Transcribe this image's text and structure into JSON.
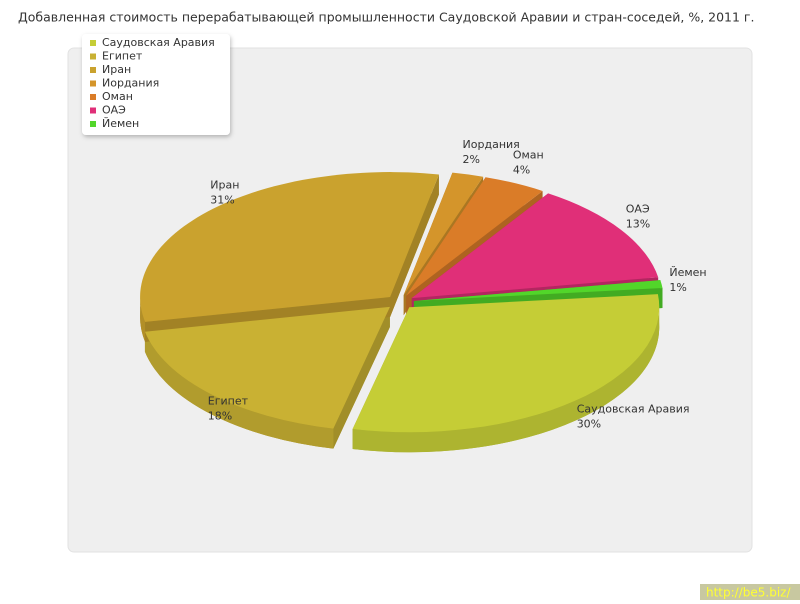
{
  "chart_data": {
    "type": "pie",
    "title": "Добавленная стоимость перерабатывающей промышленности Саудовской Аравии и стран-соседей, %, 2011 г.",
    "categories": [
      "Саудовская Аравия",
      "Египет",
      "Иран",
      "Иордания",
      "Оман",
      "ОАЭ",
      "Йемен"
    ],
    "values": [
      30,
      18,
      31,
      2,
      4,
      13,
      1
    ],
    "value_labels": [
      "30%",
      "18%",
      "31%",
      "2%",
      "4%",
      "13%",
      "1%"
    ],
    "colors": [
      "#c5cd36",
      "#c9b133",
      "#caa22e",
      "#d4952b",
      "#da7c28",
      "#e02f78",
      "#52d62a"
    ],
    "legend": "top-left",
    "watermark": "http://be5.biz/"
  }
}
